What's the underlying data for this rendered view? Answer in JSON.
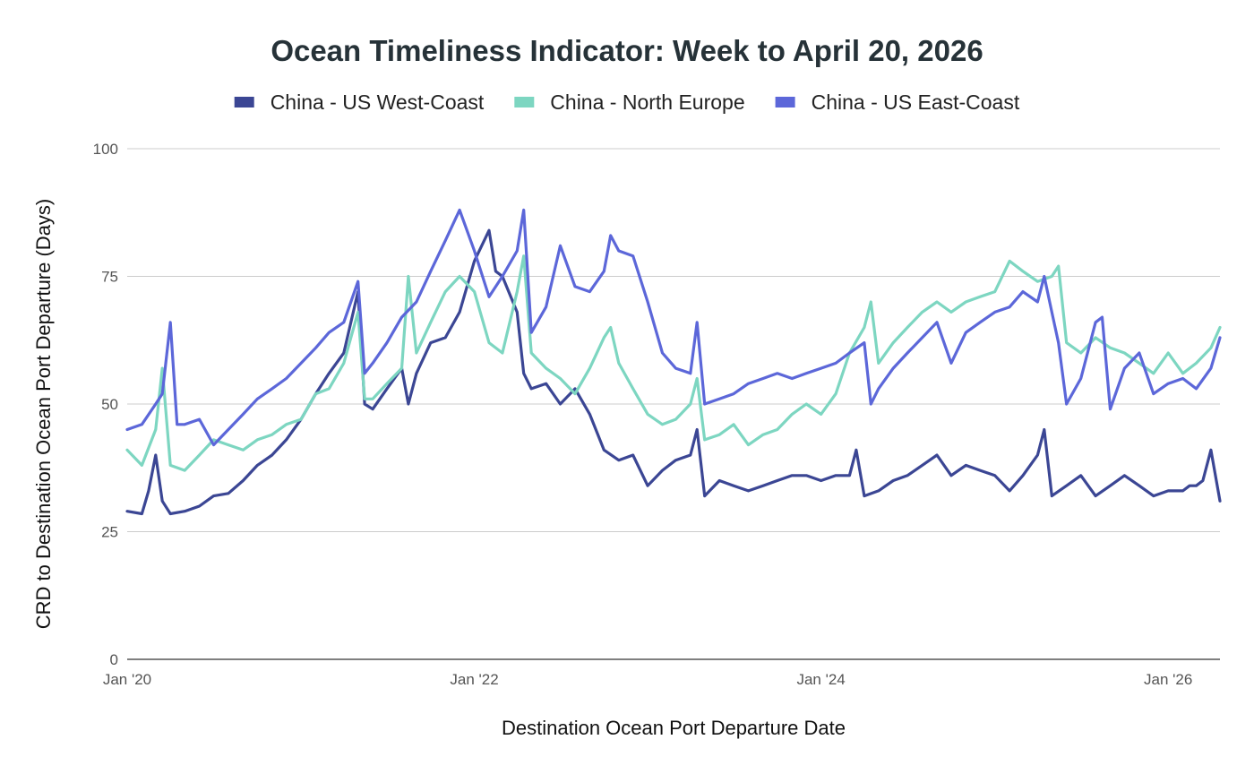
{
  "chart_data": {
    "type": "line",
    "title": "Ocean Timeliness Indicator: Week to April 20, 2026",
    "xlabel": "Destination Ocean Port Departure Date",
    "ylabel": "CRD to Destination Ocean Port Departure (Days)",
    "ylim": [
      0,
      100
    ],
    "yticks": [
      0,
      25,
      50,
      75,
      100
    ],
    "xlim": [
      "2020-01-01",
      "2026-04-20"
    ],
    "xticks": [
      {
        "date": "2020-01-01",
        "label": "Jan '20"
      },
      {
        "date": "2022-01-01",
        "label": "Jan '22"
      },
      {
        "date": "2024-01-01",
        "label": "Jan '24"
      },
      {
        "date": "2026-01-01",
        "label": "Jan '26"
      }
    ],
    "grid": true,
    "legend": "top",
    "series": [
      {
        "name": "China - US West-Coast",
        "color": "#3b4694",
        "points": [
          [
            "2020-01-01",
            29
          ],
          [
            "2020-02-01",
            28.5
          ],
          [
            "2020-02-15",
            33
          ],
          [
            "2020-03-01",
            40
          ],
          [
            "2020-03-15",
            31
          ],
          [
            "2020-04-01",
            28.5
          ],
          [
            "2020-05-01",
            29
          ],
          [
            "2020-06-01",
            30
          ],
          [
            "2020-07-01",
            32
          ],
          [
            "2020-08-01",
            32.5
          ],
          [
            "2020-09-01",
            35
          ],
          [
            "2020-10-01",
            38
          ],
          [
            "2020-11-01",
            40
          ],
          [
            "2020-12-01",
            43
          ],
          [
            "2021-01-01",
            47
          ],
          [
            "2021-02-01",
            52
          ],
          [
            "2021-03-01",
            56
          ],
          [
            "2021-04-01",
            60
          ],
          [
            "2021-05-01",
            72
          ],
          [
            "2021-05-15",
            50
          ],
          [
            "2021-06-01",
            49
          ],
          [
            "2021-07-01",
            53
          ],
          [
            "2021-08-01",
            57
          ],
          [
            "2021-08-15",
            50
          ],
          [
            "2021-09-01",
            56
          ],
          [
            "2021-10-01",
            62
          ],
          [
            "2021-11-01",
            63
          ],
          [
            "2021-12-01",
            68
          ],
          [
            "2022-01-01",
            78
          ],
          [
            "2022-02-01",
            84
          ],
          [
            "2022-02-15",
            76
          ],
          [
            "2022-03-01",
            75
          ],
          [
            "2022-04-01",
            68
          ],
          [
            "2022-04-15",
            56
          ],
          [
            "2022-05-01",
            53
          ],
          [
            "2022-06-01",
            54
          ],
          [
            "2022-07-01",
            50
          ],
          [
            "2022-08-01",
            53
          ],
          [
            "2022-09-01",
            48
          ],
          [
            "2022-10-01",
            41
          ],
          [
            "2022-11-01",
            39
          ],
          [
            "2022-12-01",
            40
          ],
          [
            "2023-01-01",
            34
          ],
          [
            "2023-02-01",
            37
          ],
          [
            "2023-03-01",
            39
          ],
          [
            "2023-04-01",
            40
          ],
          [
            "2023-04-15",
            45
          ],
          [
            "2023-05-01",
            32
          ],
          [
            "2023-06-01",
            35
          ],
          [
            "2023-07-01",
            34
          ],
          [
            "2023-08-01",
            33
          ],
          [
            "2023-09-01",
            34
          ],
          [
            "2023-10-01",
            35
          ],
          [
            "2023-11-01",
            36
          ],
          [
            "2023-12-01",
            36
          ],
          [
            "2024-01-01",
            35
          ],
          [
            "2024-02-01",
            36
          ],
          [
            "2024-03-01",
            36
          ],
          [
            "2024-03-15",
            41
          ],
          [
            "2024-04-01",
            32
          ],
          [
            "2024-05-01",
            33
          ],
          [
            "2024-06-01",
            35
          ],
          [
            "2024-07-01",
            36
          ],
          [
            "2024-08-01",
            38
          ],
          [
            "2024-09-01",
            40
          ],
          [
            "2024-10-01",
            36
          ],
          [
            "2024-11-01",
            38
          ],
          [
            "2024-12-01",
            37
          ],
          [
            "2025-01-01",
            36
          ],
          [
            "2025-02-01",
            33
          ],
          [
            "2025-03-01",
            36
          ],
          [
            "2025-04-01",
            40
          ],
          [
            "2025-04-15",
            45
          ],
          [
            "2025-05-01",
            32
          ],
          [
            "2025-06-01",
            34
          ],
          [
            "2025-07-01",
            36
          ],
          [
            "2025-08-01",
            32
          ],
          [
            "2025-09-01",
            34
          ],
          [
            "2025-10-01",
            36
          ],
          [
            "2025-11-01",
            34
          ],
          [
            "2025-12-01",
            32
          ],
          [
            "2026-01-01",
            33
          ],
          [
            "2026-02-01",
            33
          ],
          [
            "2026-02-15",
            34
          ],
          [
            "2026-03-01",
            34
          ],
          [
            "2026-03-15",
            35
          ],
          [
            "2026-04-01",
            41
          ],
          [
            "2026-04-20",
            31
          ]
        ]
      },
      {
        "name": "China - North Europe",
        "color": "#7dd6c1",
        "points": [
          [
            "2020-01-01",
            41
          ],
          [
            "2020-02-01",
            38
          ],
          [
            "2020-03-01",
            45
          ],
          [
            "2020-03-15",
            57
          ],
          [
            "2020-04-01",
            38
          ],
          [
            "2020-05-01",
            37
          ],
          [
            "2020-06-01",
            40
          ],
          [
            "2020-07-01",
            43
          ],
          [
            "2020-08-01",
            42
          ],
          [
            "2020-09-01",
            41
          ],
          [
            "2020-10-01",
            43
          ],
          [
            "2020-11-01",
            44
          ],
          [
            "2020-12-01",
            46
          ],
          [
            "2021-01-01",
            47
          ],
          [
            "2021-02-01",
            52
          ],
          [
            "2021-03-01",
            53
          ],
          [
            "2021-04-01",
            58
          ],
          [
            "2021-05-01",
            68
          ],
          [
            "2021-05-15",
            51
          ],
          [
            "2021-06-01",
            51
          ],
          [
            "2021-07-01",
            54
          ],
          [
            "2021-08-01",
            57
          ],
          [
            "2021-08-15",
            75
          ],
          [
            "2021-09-01",
            60
          ],
          [
            "2021-10-01",
            66
          ],
          [
            "2021-11-01",
            72
          ],
          [
            "2021-12-01",
            75
          ],
          [
            "2022-01-01",
            72
          ],
          [
            "2022-02-01",
            62
          ],
          [
            "2022-03-01",
            60
          ],
          [
            "2022-04-01",
            72
          ],
          [
            "2022-04-15",
            79
          ],
          [
            "2022-05-01",
            60
          ],
          [
            "2022-06-01",
            57
          ],
          [
            "2022-07-01",
            55
          ],
          [
            "2022-08-01",
            52
          ],
          [
            "2022-09-01",
            57
          ],
          [
            "2022-10-01",
            63
          ],
          [
            "2022-10-15",
            65
          ],
          [
            "2022-11-01",
            58
          ],
          [
            "2022-12-01",
            53
          ],
          [
            "2023-01-01",
            48
          ],
          [
            "2023-02-01",
            46
          ],
          [
            "2023-03-01",
            47
          ],
          [
            "2023-04-01",
            50
          ],
          [
            "2023-04-15",
            55
          ],
          [
            "2023-05-01",
            43
          ],
          [
            "2023-06-01",
            44
          ],
          [
            "2023-07-01",
            46
          ],
          [
            "2023-08-01",
            42
          ],
          [
            "2023-09-01",
            44
          ],
          [
            "2023-10-01",
            45
          ],
          [
            "2023-11-01",
            48
          ],
          [
            "2023-12-01",
            50
          ],
          [
            "2024-01-01",
            48
          ],
          [
            "2024-02-01",
            52
          ],
          [
            "2024-03-01",
            60
          ],
          [
            "2024-04-01",
            65
          ],
          [
            "2024-04-15",
            70
          ],
          [
            "2024-05-01",
            58
          ],
          [
            "2024-06-01",
            62
          ],
          [
            "2024-07-01",
            65
          ],
          [
            "2024-08-01",
            68
          ],
          [
            "2024-09-01",
            70
          ],
          [
            "2024-10-01",
            68
          ],
          [
            "2024-11-01",
            70
          ],
          [
            "2024-12-01",
            71
          ],
          [
            "2025-01-01",
            72
          ],
          [
            "2025-02-01",
            78
          ],
          [
            "2025-03-01",
            76
          ],
          [
            "2025-04-01",
            74
          ],
          [
            "2025-05-01",
            75
          ],
          [
            "2025-05-15",
            77
          ],
          [
            "2025-06-01",
            62
          ],
          [
            "2025-07-01",
            60
          ],
          [
            "2025-08-01",
            63
          ],
          [
            "2025-09-01",
            61
          ],
          [
            "2025-10-01",
            60
          ],
          [
            "2025-11-01",
            58
          ],
          [
            "2025-12-01",
            56
          ],
          [
            "2026-01-01",
            60
          ],
          [
            "2026-02-01",
            56
          ],
          [
            "2026-03-01",
            58
          ],
          [
            "2026-04-01",
            61
          ],
          [
            "2026-04-20",
            65
          ]
        ]
      },
      {
        "name": "China - US East-Coast",
        "color": "#5c67d9",
        "points": [
          [
            "2020-01-01",
            45
          ],
          [
            "2020-02-01",
            46
          ],
          [
            "2020-03-01",
            50
          ],
          [
            "2020-03-15",
            52
          ],
          [
            "2020-04-01",
            66
          ],
          [
            "2020-04-15",
            46
          ],
          [
            "2020-05-01",
            46
          ],
          [
            "2020-06-01",
            47
          ],
          [
            "2020-07-01",
            42
          ],
          [
            "2020-08-01",
            45
          ],
          [
            "2020-09-01",
            48
          ],
          [
            "2020-10-01",
            51
          ],
          [
            "2020-11-01",
            53
          ],
          [
            "2020-12-01",
            55
          ],
          [
            "2021-01-01",
            58
          ],
          [
            "2021-02-01",
            61
          ],
          [
            "2021-03-01",
            64
          ],
          [
            "2021-04-01",
            66
          ],
          [
            "2021-05-01",
            74
          ],
          [
            "2021-05-15",
            56
          ],
          [
            "2021-06-01",
            58
          ],
          [
            "2021-07-01",
            62
          ],
          [
            "2021-08-01",
            67
          ],
          [
            "2021-09-01",
            70
          ],
          [
            "2021-10-01",
            76
          ],
          [
            "2021-11-01",
            82
          ],
          [
            "2021-12-01",
            88
          ],
          [
            "2022-01-01",
            80
          ],
          [
            "2022-02-01",
            71
          ],
          [
            "2022-03-01",
            75
          ],
          [
            "2022-04-01",
            80
          ],
          [
            "2022-04-15",
            88
          ],
          [
            "2022-05-01",
            64
          ],
          [
            "2022-06-01",
            69
          ],
          [
            "2022-07-01",
            81
          ],
          [
            "2022-08-01",
            73
          ],
          [
            "2022-09-01",
            72
          ],
          [
            "2022-10-01",
            76
          ],
          [
            "2022-10-15",
            83
          ],
          [
            "2022-11-01",
            80
          ],
          [
            "2022-12-01",
            79
          ],
          [
            "2023-01-01",
            70
          ],
          [
            "2023-02-01",
            60
          ],
          [
            "2023-03-01",
            57
          ],
          [
            "2023-04-01",
            56
          ],
          [
            "2023-04-15",
            66
          ],
          [
            "2023-05-01",
            50
          ],
          [
            "2023-06-01",
            51
          ],
          [
            "2023-07-01",
            52
          ],
          [
            "2023-08-01",
            54
          ],
          [
            "2023-09-01",
            55
          ],
          [
            "2023-10-01",
            56
          ],
          [
            "2023-11-01",
            55
          ],
          [
            "2023-12-01",
            56
          ],
          [
            "2024-01-01",
            57
          ],
          [
            "2024-02-01",
            58
          ],
          [
            "2024-03-01",
            60
          ],
          [
            "2024-04-01",
            62
          ],
          [
            "2024-04-15",
            50
          ],
          [
            "2024-05-01",
            53
          ],
          [
            "2024-06-01",
            57
          ],
          [
            "2024-07-01",
            60
          ],
          [
            "2024-08-01",
            63
          ],
          [
            "2024-09-01",
            66
          ],
          [
            "2024-10-01",
            58
          ],
          [
            "2024-11-01",
            64
          ],
          [
            "2024-12-01",
            66
          ],
          [
            "2025-01-01",
            68
          ],
          [
            "2025-02-01",
            69
          ],
          [
            "2025-03-01",
            72
          ],
          [
            "2025-04-01",
            70
          ],
          [
            "2025-04-15",
            75
          ],
          [
            "2025-05-01",
            68
          ],
          [
            "2025-05-15",
            62
          ],
          [
            "2025-06-01",
            50
          ],
          [
            "2025-07-01",
            55
          ],
          [
            "2025-08-01",
            66
          ],
          [
            "2025-08-15",
            67
          ],
          [
            "2025-09-01",
            49
          ],
          [
            "2025-10-01",
            57
          ],
          [
            "2025-11-01",
            60
          ],
          [
            "2025-12-01",
            52
          ],
          [
            "2026-01-01",
            54
          ],
          [
            "2026-02-01",
            55
          ],
          [
            "2026-03-01",
            53
          ],
          [
            "2026-04-01",
            57
          ],
          [
            "2026-04-20",
            63
          ]
        ]
      }
    ]
  }
}
